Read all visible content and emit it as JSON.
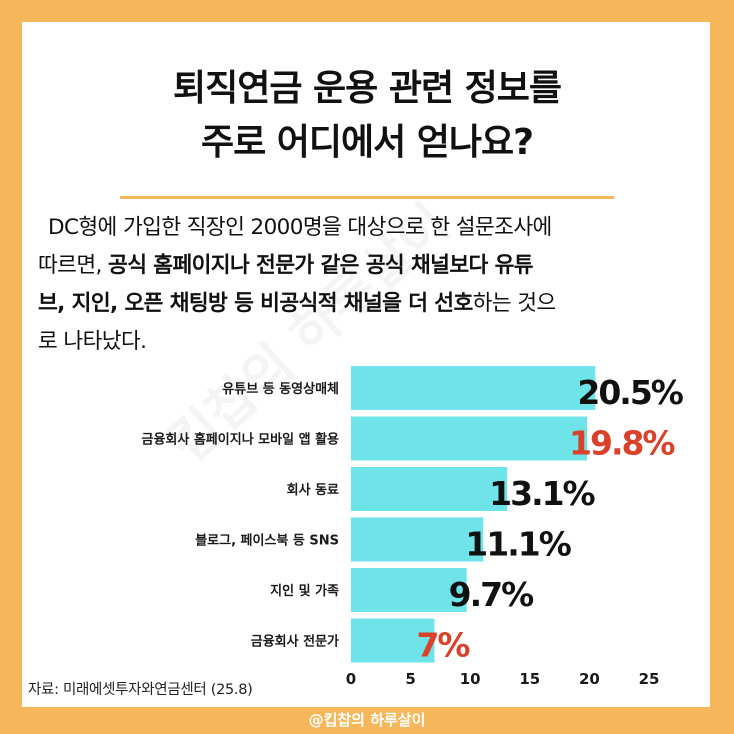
{
  "title": {
    "line1": "퇴직연금 운용 관련 정보를",
    "line2": "주로 어디에서 얻나요?"
  },
  "body": {
    "text_1": "DC형에 가입한 직장인 2000명을 대상으로 한 설문조사에",
    "text_2": "따르면, ",
    "bold_1": "공식 홈페이지나 전문가 같은 공식 채널보다 유튜",
    "bold_2": "브, 지인, 오픈 채팅방 등 비공식적 채널을 더 선호",
    "text_3": "하는 것으",
    "text_4": "로 나타났다."
  },
  "watermark": "킵찹의 하루살이",
  "source": "자료: 미래에셋투자와연금센터 (25.8)",
  "credit": "@킵찹의 하루살이",
  "colors": {
    "background": "#f5b759",
    "bar": "#6ee3e8",
    "value_default": "#111111",
    "value_highlight": "#d9412b"
  },
  "chart_data": {
    "type": "bar",
    "orientation": "horizontal",
    "categories": [
      "유튜브 등 동영상매체",
      "금융회사 홈페이지나 모바일 앱 활용",
      "회사 동료",
      "블로그, 페이스북 등 SNS",
      "지인 및 가족",
      "금융회사 전문가"
    ],
    "values": [
      20.5,
      19.8,
      13.1,
      11.1,
      9.7,
      7
    ],
    "value_labels": [
      "20.5%",
      "19.8%",
      "13.1%",
      "11.1%",
      "9.7%",
      "7%"
    ],
    "highlighted": [
      false,
      true,
      false,
      false,
      false,
      true
    ],
    "xlim": [
      0,
      25
    ],
    "xticks": [
      "0",
      "5",
      "10",
      "15",
      "20",
      "25"
    ],
    "grid": false
  }
}
